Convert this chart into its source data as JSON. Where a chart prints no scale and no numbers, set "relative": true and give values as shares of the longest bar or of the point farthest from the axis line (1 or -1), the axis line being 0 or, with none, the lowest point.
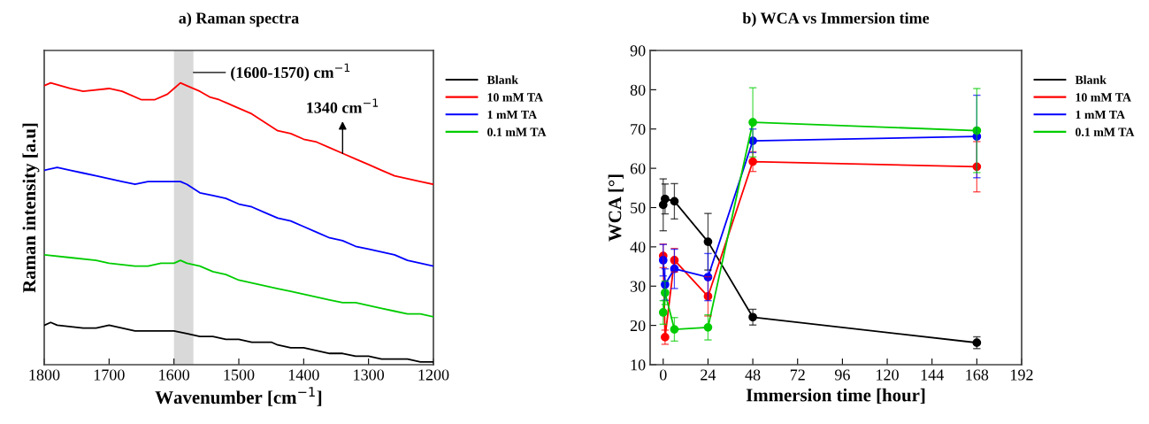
{
  "chart_data": [
    {
      "type": "line",
      "title": "a) Raman spectra",
      "xlabel": "Wavenumber [cm$^{−1}$]",
      "ylabel": "Raman intensity [a.u]",
      "relative": true,
      "tick_labels": "x",
      "xlim": [
        1800,
        1200
      ],
      "xticks": [
        1800,
        1700,
        1600,
        1500,
        1400,
        1300,
        1200
      ],
      "grid": false,
      "legend": "right",
      "marker": "none",
      "line_style": "solid",
      "bands": [
        {
          "axis": "x",
          "from": 1600,
          "to": 1570,
          "label": "(1600-1570) cm$^{−1}$",
          "color": "#d9d9d9"
        }
      ],
      "annotations": [
        {
          "text": "1340 cm$^{−1}$",
          "x": 1340,
          "y": 0.75
        }
      ],
      "series": [
        {
          "name": "Blank",
          "color": "#000000",
          "x": [
            1800,
            1790,
            1780,
            1740,
            1720,
            1700,
            1680,
            1660,
            1620,
            1610,
            1600,
            1580,
            1560,
            1540,
            1520,
            1500,
            1480,
            1460,
            1450,
            1440,
            1420,
            1400,
            1380,
            1360,
            1340,
            1320,
            1300,
            1280,
            1260,
            1240,
            1220,
            1200
          ],
          "values": [
            0.14,
            0.15,
            0.14,
            0.13,
            0.13,
            0.14,
            0.13,
            0.12,
            0.12,
            0.12,
            0.12,
            0.11,
            0.1,
            0.1,
            0.09,
            0.09,
            0.08,
            0.08,
            0.08,
            0.07,
            0.06,
            0.06,
            0.05,
            0.04,
            0.04,
            0.03,
            0.03,
            0.02,
            0.02,
            0.02,
            0.01,
            0.01
          ]
        },
        {
          "name": "10 mM TA",
          "color": "#ff0000",
          "x": [
            1800,
            1790,
            1760,
            1740,
            1700,
            1680,
            1650,
            1630,
            1610,
            1600,
            1590,
            1580,
            1560,
            1545,
            1530,
            1510,
            1480,
            1460,
            1440,
            1420,
            1400,
            1380,
            1360,
            1340,
            1320,
            1300,
            1280,
            1260,
            1240,
            1220,
            1200
          ],
          "values": [
            0.99,
            1.0,
            0.98,
            0.97,
            0.98,
            0.97,
            0.94,
            0.94,
            0.96,
            0.98,
            1.0,
            0.99,
            0.97,
            0.95,
            0.94,
            0.92,
            0.89,
            0.86,
            0.83,
            0.82,
            0.8,
            0.79,
            0.77,
            0.75,
            0.73,
            0.71,
            0.69,
            0.67,
            0.66,
            0.65,
            0.64
          ]
        },
        {
          "name": "1 mM TA",
          "color": "#0000ff",
          "x": [
            1800,
            1780,
            1760,
            1740,
            1720,
            1700,
            1680,
            1660,
            1640,
            1620,
            1600,
            1590,
            1580,
            1560,
            1540,
            1520,
            1500,
            1480,
            1460,
            1440,
            1420,
            1400,
            1380,
            1360,
            1340,
            1320,
            1300,
            1280,
            1260,
            1240,
            1220,
            1200
          ],
          "values": [
            0.69,
            0.7,
            0.69,
            0.68,
            0.67,
            0.66,
            0.65,
            0.64,
            0.65,
            0.65,
            0.65,
            0.65,
            0.64,
            0.61,
            0.6,
            0.59,
            0.57,
            0.56,
            0.54,
            0.52,
            0.51,
            0.49,
            0.47,
            0.45,
            0.44,
            0.42,
            0.41,
            0.4,
            0.39,
            0.37,
            0.36,
            0.35
          ]
        },
        {
          "name": "0.1 mM TA",
          "color": "#00cc00",
          "x": [
            1800,
            1760,
            1720,
            1700,
            1660,
            1640,
            1620,
            1600,
            1590,
            1580,
            1560,
            1540,
            1520,
            1500,
            1480,
            1460,
            1440,
            1420,
            1400,
            1380,
            1360,
            1340,
            1320,
            1300,
            1280,
            1260,
            1240,
            1220,
            1200
          ],
          "values": [
            0.39,
            0.38,
            0.37,
            0.36,
            0.35,
            0.35,
            0.36,
            0.36,
            0.37,
            0.36,
            0.35,
            0.33,
            0.32,
            0.3,
            0.29,
            0.28,
            0.27,
            0.26,
            0.25,
            0.24,
            0.23,
            0.22,
            0.22,
            0.21,
            0.2,
            0.19,
            0.18,
            0.18,
            0.17
          ]
        }
      ]
    },
    {
      "type": "line",
      "title": "b) WCA vs Immersion time",
      "xlabel": "Immersion time [hour]",
      "ylabel": "WCA [°]",
      "xlim": [
        -7,
        192
      ],
      "xticks": [
        0,
        24,
        48,
        72,
        96,
        120,
        144,
        168,
        192
      ],
      "ylim": [
        10,
        90
      ],
      "yticks": [
        10,
        20,
        30,
        40,
        50,
        60,
        70,
        80,
        90
      ],
      "grid": false,
      "legend": "right",
      "marker": "circle",
      "line_style": "solid",
      "x": [
        0,
        1,
        6,
        24,
        48,
        168
      ],
      "series": [
        {
          "name": "Blank",
          "color": "#000000",
          "values": [
            50.7,
            52.2,
            51.6,
            41.3,
            22.1,
            15.6
          ],
          "errors": [
            6.6,
            3.8,
            4.5,
            7.2,
            2,
            1.5
          ]
        },
        {
          "name": "10 mM TA",
          "color": "#ff0000",
          "values": [
            37.7,
            17.0,
            36.6,
            27.4,
            61.7,
            60.4
          ],
          "errors": [
            3,
            1.8,
            3,
            5,
            2.5,
            6.4
          ]
        },
        {
          "name": "1 mM TA",
          "color": "#0000ff",
          "values": [
            36.6,
            30.4,
            34.4,
            32.3,
            67.0,
            68.1
          ],
          "errors": [
            4,
            4,
            5,
            6,
            3,
            10.5
          ]
        },
        {
          "name": "0.1 mM TA",
          "color": "#00cc00",
          "values": [
            23.3,
            28.3,
            19.0,
            19.5,
            71.7,
            69.6
          ],
          "errors": [
            3,
            3,
            3,
            3.2,
            8.8,
            10.7
          ]
        }
      ]
    }
  ]
}
